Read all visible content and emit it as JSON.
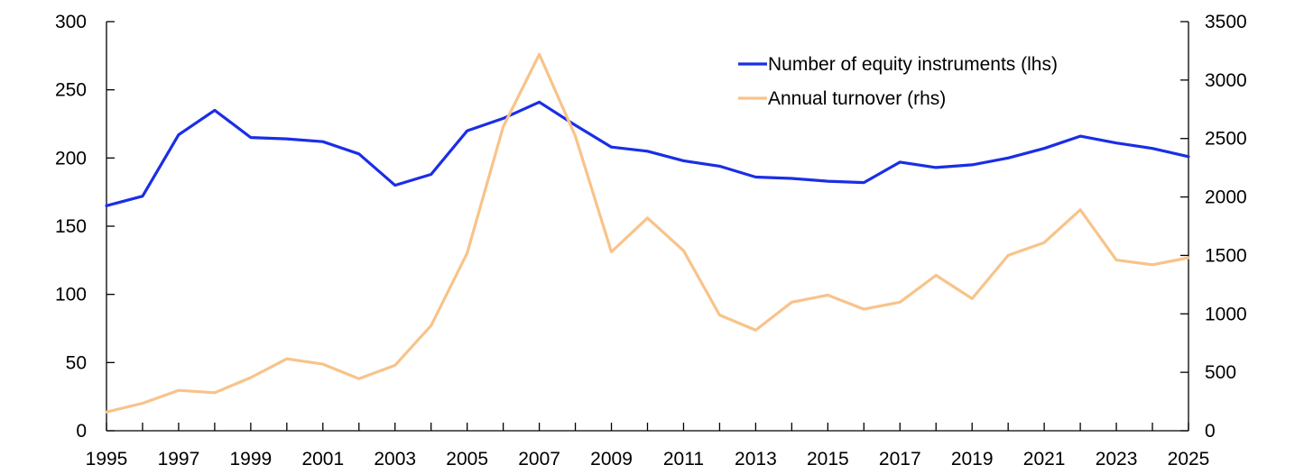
{
  "chart_data": {
    "type": "line",
    "title": "",
    "xlabel": "",
    "ylabel": "",
    "x": [
      1995,
      1996,
      1997,
      1998,
      1999,
      2000,
      2001,
      2002,
      2003,
      2004,
      2005,
      2006,
      2007,
      2008,
      2009,
      2010,
      2011,
      2012,
      2013,
      2014,
      2015,
      2016,
      2017,
      2018,
      2019,
      2020,
      2021,
      2022,
      2023,
      2024,
      2025
    ],
    "x_ticks": [
      "1995",
      "1997",
      "1999",
      "2001",
      "2003",
      "2005",
      "2007",
      "2009",
      "2011",
      "2013",
      "2015",
      "2017",
      "2019",
      "2021",
      "2023",
      "2025"
    ],
    "xlim": [
      1995,
      2025
    ],
    "ylim_left": [
      0,
      300
    ],
    "ylim_right": [
      0,
      3500
    ],
    "y_ticks_left": [
      "0",
      "50",
      "100",
      "150",
      "200",
      "250",
      "300"
    ],
    "y_ticks_right": [
      "0",
      "500",
      "1000",
      "1500",
      "2000",
      "2500",
      "3000",
      "3500"
    ],
    "grid": false,
    "legend_position": "top-right",
    "series": [
      {
        "name": "Number of equity instruments (lhs)",
        "axis": "left",
        "color": "#1a2ee6",
        "values": [
          165,
          172,
          217,
          235,
          215,
          214,
          212,
          203,
          180,
          188,
          220,
          229,
          241,
          224,
          208,
          205,
          198,
          194,
          186,
          185,
          183,
          182,
          197,
          193,
          195,
          200,
          207,
          216,
          211,
          207,
          201
        ]
      },
      {
        "name": "Annual turnover (rhs)",
        "axis": "right",
        "color": "#f8c38a",
        "values": [
          160,
          235,
          345,
          325,
          455,
          615,
          570,
          445,
          560,
          900,
          1520,
          2600,
          3220,
          2520,
          1530,
          1820,
          1540,
          990,
          860,
          1100,
          1160,
          1040,
          1100,
          1330,
          1130,
          1500,
          1610,
          1890,
          1460,
          1420,
          1480
        ]
      }
    ]
  }
}
